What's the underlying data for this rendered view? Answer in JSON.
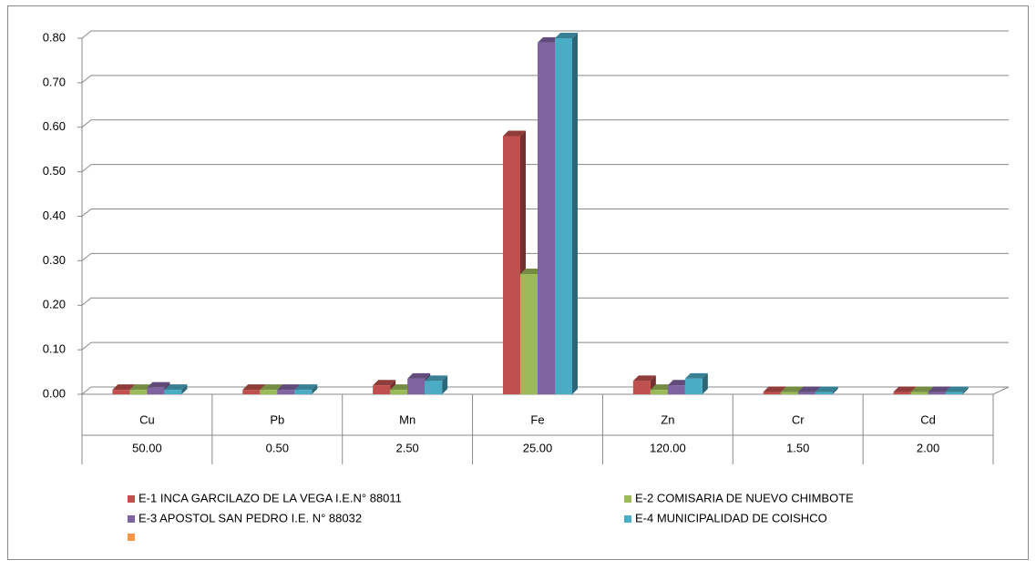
{
  "chart_data": {
    "type": "bar3d",
    "categories": [
      "Cu",
      "Pb",
      "Mn",
      "Fe",
      "Zn",
      "Cr",
      "Cd"
    ],
    "category_sublabels": [
      "50.00",
      "0.50",
      "2.50",
      "25.00",
      "120.00",
      "1.50",
      "2.00"
    ],
    "series": [
      {
        "name": "E-1 INCA GARCILAZO DE LA VEGA I.E.N° 88011",
        "color": "#c0504d",
        "values": [
          0.01,
          0.01,
          0.02,
          0.58,
          0.03,
          0.005,
          0.005
        ]
      },
      {
        "name": "E-2 COMISARIA DE NUEVO CHIMBOTE",
        "color": "#9bbb59",
        "values": [
          0.01,
          0.01,
          0.01,
          0.27,
          0.01,
          0.005,
          0.005
        ]
      },
      {
        "name": "E-3 APOSTOL SAN PEDRO I.E. N° 88032",
        "color": "#8064a2",
        "values": [
          0.015,
          0.01,
          0.035,
          0.79,
          0.02,
          0.005,
          0.005
        ]
      },
      {
        "name": "E-4 MUNICIPALIDAD DE COISHCO",
        "color": "#4bacc6",
        "values": [
          0.01,
          0.01,
          0.03,
          0.8,
          0.035,
          0.005,
          0.005
        ]
      },
      {
        "color": "#f79646",
        "values": [
          null,
          null,
          null,
          null,
          null,
          null,
          null
        ]
      }
    ],
    "ylim": [
      0,
      0.8
    ],
    "yticks": [
      {
        "value": 0,
        "label": "0.00"
      },
      {
        "value": 0.1,
        "label": "0.10"
      },
      {
        "value": 0.2,
        "label": "0.20"
      },
      {
        "value": 0.3,
        "label": "0.30"
      },
      {
        "value": 0.4,
        "label": "0.40"
      },
      {
        "value": 0.5,
        "label": "0.50"
      },
      {
        "value": 0.6,
        "label": "0.60"
      },
      {
        "value": 0.7,
        "label": "0.70"
      },
      {
        "value": 0.8,
        "label": "0.80"
      }
    ],
    "grid": true
  }
}
